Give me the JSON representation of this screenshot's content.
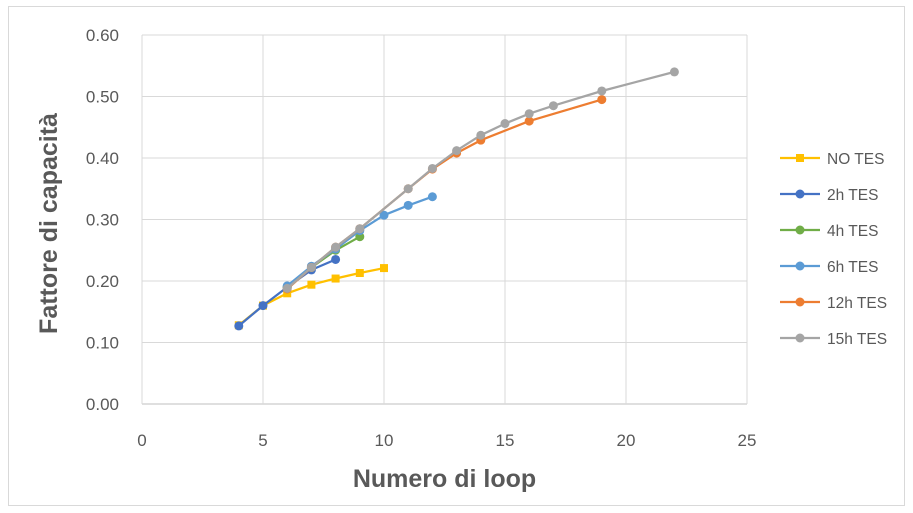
{
  "chart_data": {
    "type": "line",
    "title": "",
    "xlabel": "Numero di loop",
    "ylabel": "Fattore di capacità",
    "xlim": [
      0,
      25
    ],
    "ylim": [
      0,
      0.6
    ],
    "x_ticks": [
      "0",
      "5",
      "10",
      "15",
      "20",
      "25"
    ],
    "y_ticks": [
      "0.00",
      "0.10",
      "0.20",
      "0.30",
      "0.40",
      "0.50",
      "0.60"
    ],
    "x_tick_values": [
      0,
      5,
      10,
      15,
      20,
      25
    ],
    "y_tick_values": [
      0,
      0.1,
      0.2,
      0.3,
      0.4,
      0.5,
      0.6
    ],
    "grid": true,
    "legend_position": "right",
    "series": [
      {
        "name": "NO TES",
        "color": "#FFC000",
        "marker": "square",
        "x": [
          4,
          5,
          6,
          7,
          8,
          9,
          10
        ],
        "y": [
          0.128,
          0.16,
          0.18,
          0.194,
          0.204,
          0.213,
          0.221
        ]
      },
      {
        "name": "2h TES",
        "color": "#4472C4",
        "marker": "circle",
        "x": [
          4,
          5,
          6,
          7,
          8
        ],
        "y": [
          0.127,
          0.16,
          0.19,
          0.218,
          0.235
        ]
      },
      {
        "name": "4h TES",
        "color": "#70AD47",
        "marker": "circle",
        "x": [
          6,
          7,
          8,
          9
        ],
        "y": [
          0.19,
          0.222,
          0.25,
          0.272
        ]
      },
      {
        "name": "6h TES",
        "color": "#5B9BD5",
        "marker": "circle",
        "x": [
          6,
          7,
          8,
          9,
          10,
          11,
          12
        ],
        "y": [
          0.192,
          0.224,
          0.252,
          0.282,
          0.307,
          0.323,
          0.337
        ]
      },
      {
        "name": "12h TES",
        "color": "#ED7D31",
        "marker": "circle",
        "x": [
          6,
          7,
          8,
          9,
          11,
          12,
          13,
          14,
          16,
          19
        ],
        "y": [
          0.187,
          0.222,
          0.255,
          0.285,
          0.35,
          0.382,
          0.408,
          0.429,
          0.46,
          0.495
        ]
      },
      {
        "name": "15h TES",
        "color": "#A5A5A5",
        "marker": "circle",
        "x": [
          6,
          7,
          8,
          9,
          11,
          12,
          13,
          14,
          15,
          16,
          17,
          19,
          22
        ],
        "y": [
          0.188,
          0.222,
          0.255,
          0.285,
          0.35,
          0.383,
          0.412,
          0.437,
          0.456,
          0.472,
          0.485,
          0.509,
          0.54
        ]
      }
    ]
  }
}
